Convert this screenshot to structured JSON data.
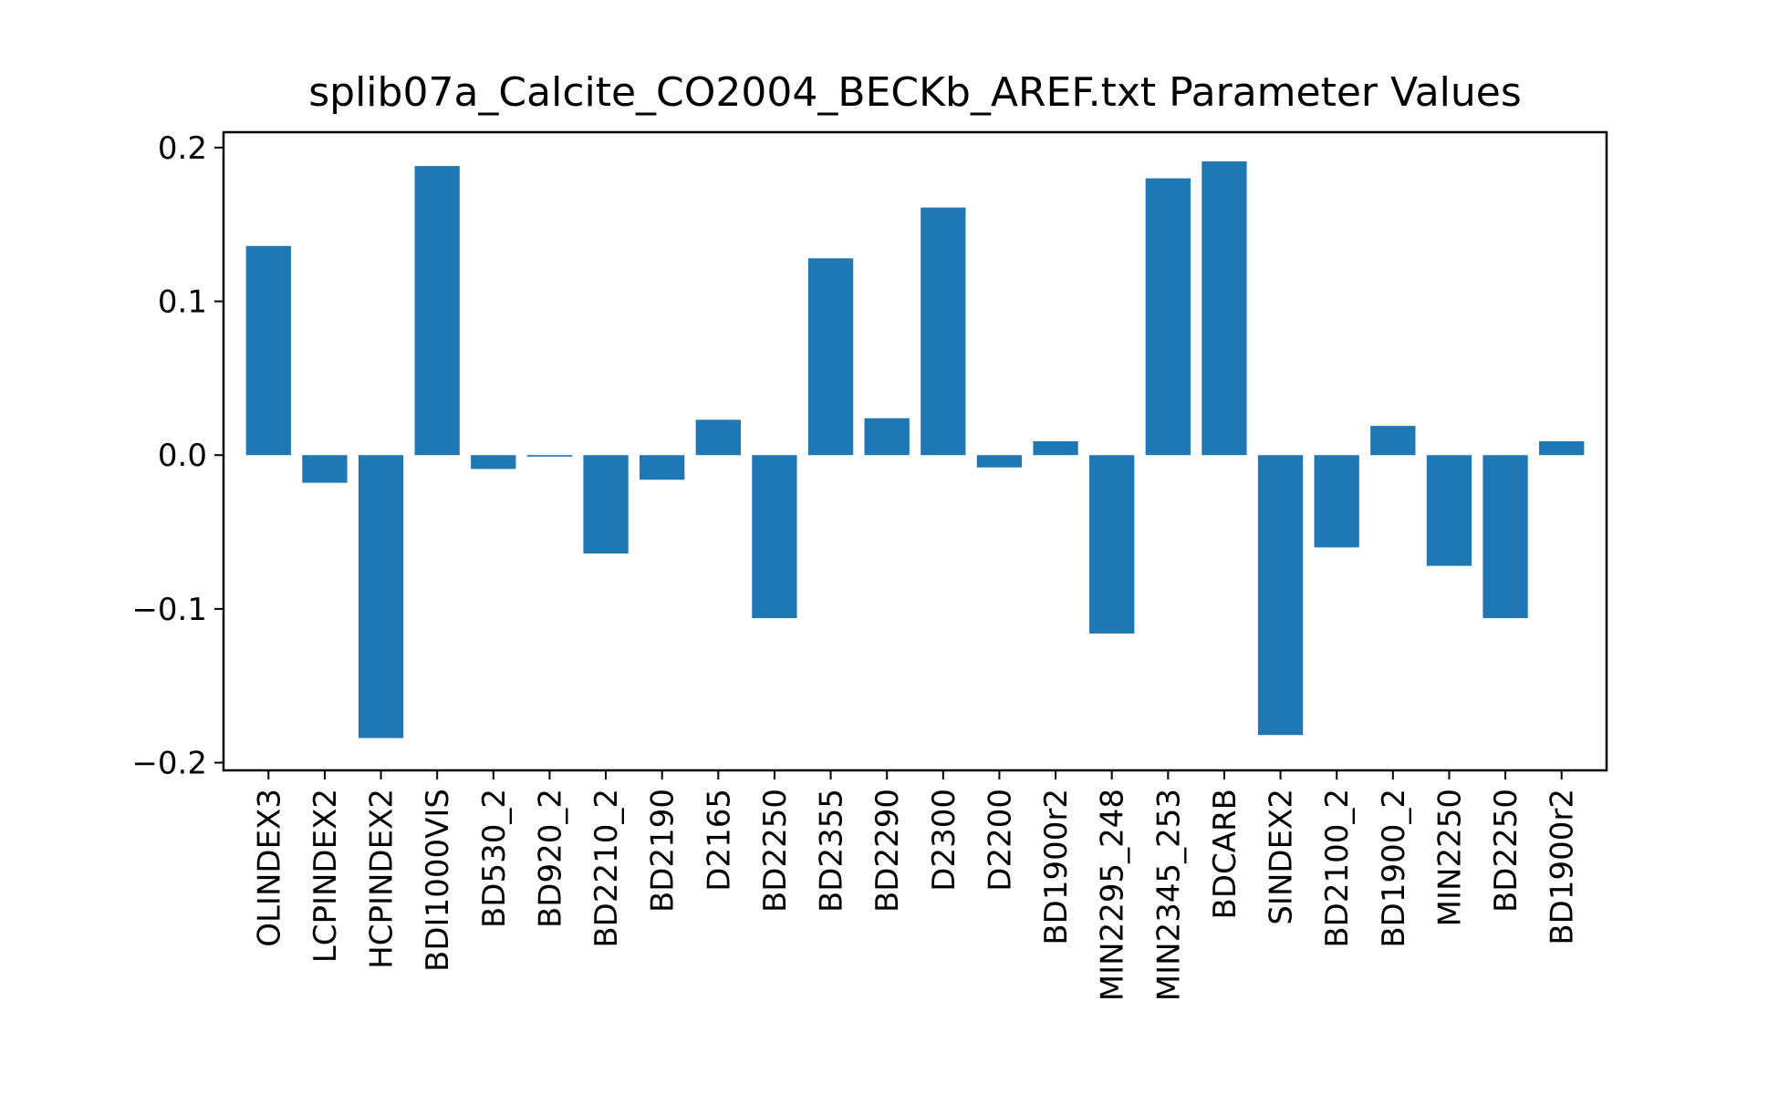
{
  "chart_data": {
    "type": "bar",
    "title": "splib07a_Calcite_CO2004_BECKb_AREF.txt Parameter Values",
    "xlabel": "",
    "ylabel": "",
    "categories": [
      "OLINDEX3",
      "LCPINDEX2",
      "HCPINDEX2",
      "BDI1000VIS",
      "BD530_2",
      "BD920_2",
      "BD2210_2",
      "BD2190",
      "D2165",
      "BD2250",
      "BD2355",
      "BD2290",
      "D2300",
      "D2200",
      "BD1900r2",
      "MIN2295_248",
      "MIN2345_253",
      "BDCARB",
      "SINDEX2",
      "BD2100_2",
      "BD1900_2",
      "MIN2250",
      "BD2250",
      "BD1900r2"
    ],
    "values": [
      0.136,
      -0.018,
      -0.184,
      0.188,
      -0.009,
      -0.001,
      -0.064,
      -0.016,
      0.023,
      -0.106,
      0.128,
      0.024,
      0.161,
      -0.008,
      0.009,
      -0.116,
      0.18,
      0.191,
      -0.182,
      -0.06,
      0.019,
      -0.072,
      -0.106,
      0.009
    ],
    "ylim": [
      -0.205,
      0.21
    ],
    "yticks": [
      -0.2,
      -0.1,
      0.0,
      0.1,
      0.2
    ],
    "ytick_labels": [
      "−0.2",
      "−0.1",
      "0.0",
      "0.1",
      "0.2"
    ],
    "bar_color": "#1f77b4",
    "grid": false,
    "legend": "none"
  }
}
